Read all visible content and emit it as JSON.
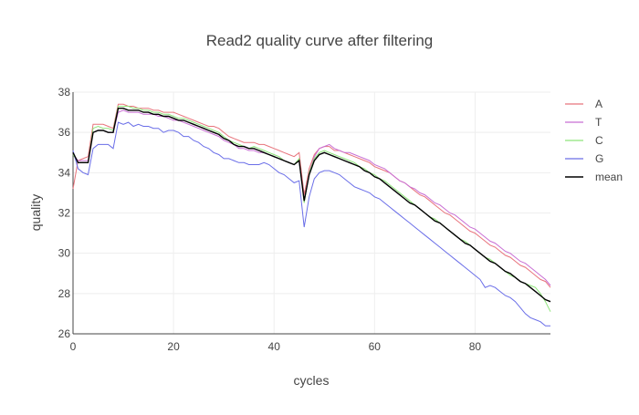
{
  "chart_data": {
    "type": "line",
    "title": "Read2 quality curve after filtering",
    "xlabel": "cycles",
    "ylabel": "quality",
    "xlim": [
      0,
      95
    ],
    "ylim": [
      26,
      38
    ],
    "xticks": [
      0,
      20,
      40,
      60,
      80
    ],
    "yticks": [
      26,
      28,
      30,
      32,
      34,
      36,
      38
    ],
    "grid": true,
    "legend_position": "right",
    "series": [
      {
        "name": "A",
        "color": "#e8747c",
        "x": [
          0,
          1,
          2,
          3,
          4,
          5,
          6,
          7,
          8,
          9,
          10,
          11,
          12,
          13,
          14,
          15,
          16,
          17,
          18,
          19,
          20,
          21,
          22,
          23,
          24,
          25,
          26,
          27,
          28,
          29,
          30,
          31,
          32,
          33,
          34,
          35,
          36,
          37,
          38,
          39,
          40,
          41,
          42,
          43,
          44,
          45,
          46,
          47,
          48,
          49,
          50,
          51,
          52,
          53,
          54,
          55,
          56,
          57,
          58,
          59,
          60,
          61,
          62,
          63,
          64,
          65,
          66,
          67,
          68,
          69,
          70,
          71,
          72,
          73,
          74,
          75,
          76,
          77,
          78,
          79,
          80,
          81,
          82,
          83,
          84,
          85,
          86,
          87,
          88,
          89,
          90,
          91,
          92,
          93,
          94,
          95
        ],
        "values": [
          33.2,
          34.6,
          34.7,
          34.8,
          36.4,
          36.4,
          36.4,
          36.3,
          36.2,
          37.4,
          37.4,
          37.3,
          37.3,
          37.2,
          37.2,
          37.2,
          37.1,
          37.1,
          37.0,
          37.0,
          37.0,
          36.9,
          36.8,
          36.7,
          36.6,
          36.5,
          36.4,
          36.3,
          36.3,
          36.2,
          36.0,
          35.8,
          35.7,
          35.6,
          35.5,
          35.5,
          35.5,
          35.4,
          35.4,
          35.3,
          35.2,
          35.1,
          35.0,
          34.9,
          34.8,
          35.0,
          32.9,
          34.2,
          34.9,
          35.2,
          35.3,
          35.3,
          35.1,
          35.1,
          35.0,
          34.9,
          34.8,
          34.7,
          34.6,
          34.5,
          34.3,
          34.2,
          34.1,
          34.0,
          33.8,
          33.6,
          33.5,
          33.3,
          33.1,
          32.9,
          32.8,
          32.6,
          32.4,
          32.2,
          32.0,
          31.9,
          31.7,
          31.5,
          31.3,
          31.1,
          31.0,
          30.8,
          30.6,
          30.4,
          30.3,
          30.1,
          29.9,
          29.8,
          29.6,
          29.4,
          29.3,
          29.1,
          28.9,
          28.7,
          28.6,
          28.3
        ]
      },
      {
        "name": "T",
        "color": "#c86ed4",
        "x": [
          0,
          1,
          2,
          3,
          4,
          5,
          6,
          7,
          8,
          9,
          10,
          11,
          12,
          13,
          14,
          15,
          16,
          17,
          18,
          19,
          20,
          21,
          22,
          23,
          24,
          25,
          26,
          27,
          28,
          29,
          30,
          31,
          32,
          33,
          34,
          35,
          36,
          37,
          38,
          39,
          40,
          41,
          42,
          43,
          44,
          45,
          46,
          47,
          48,
          49,
          50,
          51,
          52,
          53,
          54,
          55,
          56,
          57,
          58,
          59,
          60,
          61,
          62,
          63,
          64,
          65,
          66,
          67,
          68,
          69,
          70,
          71,
          72,
          73,
          74,
          75,
          76,
          77,
          78,
          79,
          80,
          81,
          82,
          83,
          84,
          85,
          86,
          87,
          88,
          89,
          90,
          91,
          92,
          93,
          94,
          95
        ],
        "values": [
          34.9,
          34.6,
          34.6,
          34.6,
          36.0,
          36.1,
          36.1,
          36.0,
          36.0,
          37.0,
          37.1,
          37.0,
          37.0,
          37.0,
          36.9,
          36.9,
          36.9,
          36.8,
          36.8,
          36.7,
          36.6,
          36.6,
          36.5,
          36.4,
          36.3,
          36.2,
          36.1,
          36.0,
          35.9,
          35.8,
          35.6,
          35.5,
          35.4,
          35.2,
          35.2,
          35.1,
          35.1,
          35.0,
          35.0,
          34.9,
          34.8,
          34.7,
          34.6,
          34.5,
          34.4,
          34.6,
          32.6,
          34.0,
          34.8,
          35.2,
          35.3,
          35.4,
          35.2,
          35.1,
          35.0,
          35.0,
          34.9,
          34.8,
          34.7,
          34.6,
          34.4,
          34.3,
          34.2,
          34.0,
          33.8,
          33.6,
          33.5,
          33.3,
          33.2,
          33.0,
          32.9,
          32.7,
          32.5,
          32.4,
          32.2,
          32.0,
          31.9,
          31.7,
          31.5,
          31.3,
          31.2,
          31.0,
          30.8,
          30.6,
          30.5,
          30.3,
          30.1,
          30.0,
          29.8,
          29.6,
          29.5,
          29.3,
          29.1,
          28.9,
          28.7,
          28.4
        ]
      },
      {
        "name": "C",
        "color": "#8ee47a",
        "x": [
          0,
          1,
          2,
          3,
          4,
          5,
          6,
          7,
          8,
          9,
          10,
          11,
          12,
          13,
          14,
          15,
          16,
          17,
          18,
          19,
          20,
          21,
          22,
          23,
          24,
          25,
          26,
          27,
          28,
          29,
          30,
          31,
          32,
          33,
          34,
          35,
          36,
          37,
          38,
          39,
          40,
          41,
          42,
          43,
          44,
          45,
          46,
          47,
          48,
          49,
          50,
          51,
          52,
          53,
          54,
          55,
          56,
          57,
          58,
          59,
          60,
          61,
          62,
          63,
          64,
          65,
          66,
          67,
          68,
          69,
          70,
          71,
          72,
          73,
          74,
          75,
          76,
          77,
          78,
          79,
          80,
          81,
          82,
          83,
          84,
          85,
          86,
          87,
          88,
          89,
          90,
          91,
          92,
          93,
          94,
          95
        ],
        "values": [
          34.9,
          34.5,
          34.5,
          34.5,
          36.2,
          36.3,
          36.2,
          36.2,
          36.1,
          37.3,
          37.3,
          37.3,
          37.2,
          37.2,
          37.1,
          37.1,
          37.0,
          37.0,
          36.9,
          36.9,
          36.8,
          36.7,
          36.7,
          36.6,
          36.5,
          36.4,
          36.3,
          36.2,
          36.1,
          36.0,
          35.8,
          35.6,
          35.5,
          35.4,
          35.3,
          35.2,
          35.3,
          35.2,
          35.1,
          35.0,
          34.9,
          34.8,
          34.6,
          34.5,
          34.4,
          34.7,
          32.5,
          34.0,
          34.7,
          35.0,
          35.1,
          35.0,
          34.9,
          34.8,
          34.7,
          34.6,
          34.5,
          34.3,
          34.2,
          34.0,
          33.9,
          33.7,
          33.6,
          33.4,
          33.2,
          33.0,
          32.8,
          32.6,
          32.4,
          32.2,
          32.0,
          31.8,
          31.7,
          31.5,
          31.3,
          31.1,
          30.9,
          30.7,
          30.6,
          30.4,
          30.2,
          30.0,
          29.8,
          29.7,
          29.5,
          29.3,
          29.1,
          28.9,
          28.8,
          28.6,
          28.5,
          28.4,
          28.3,
          28.0,
          27.6,
          27.1
        ]
      },
      {
        "name": "G",
        "color": "#6a6ee8",
        "x": [
          0,
          1,
          2,
          3,
          4,
          5,
          6,
          7,
          8,
          9,
          10,
          11,
          12,
          13,
          14,
          15,
          16,
          17,
          18,
          19,
          20,
          21,
          22,
          23,
          24,
          25,
          26,
          27,
          28,
          29,
          30,
          31,
          32,
          33,
          34,
          35,
          36,
          37,
          38,
          39,
          40,
          41,
          42,
          43,
          44,
          45,
          46,
          47,
          48,
          49,
          50,
          51,
          52,
          53,
          54,
          55,
          56,
          57,
          58,
          59,
          60,
          61,
          62,
          63,
          64,
          65,
          66,
          67,
          68,
          69,
          70,
          71,
          72,
          73,
          74,
          75,
          76,
          77,
          78,
          79,
          80,
          81,
          82,
          83,
          84,
          85,
          86,
          87,
          88,
          89,
          90,
          91,
          92,
          93,
          94,
          95
        ],
        "values": [
          35.1,
          34.2,
          34.0,
          33.9,
          35.2,
          35.4,
          35.4,
          35.4,
          35.2,
          36.5,
          36.4,
          36.5,
          36.3,
          36.4,
          36.3,
          36.3,
          36.2,
          36.2,
          36.0,
          36.1,
          36.1,
          36.0,
          35.8,
          35.8,
          35.6,
          35.5,
          35.3,
          35.2,
          35.0,
          34.9,
          34.7,
          34.7,
          34.6,
          34.5,
          34.5,
          34.4,
          34.4,
          34.4,
          34.5,
          34.4,
          34.2,
          34.0,
          33.9,
          33.7,
          33.5,
          33.6,
          31.3,
          32.8,
          33.7,
          34.0,
          34.1,
          34.1,
          34.0,
          33.9,
          33.7,
          33.5,
          33.3,
          33.2,
          33.1,
          33.0,
          32.8,
          32.7,
          32.5,
          32.3,
          32.1,
          31.9,
          31.7,
          31.5,
          31.3,
          31.1,
          30.9,
          30.7,
          30.5,
          30.3,
          30.1,
          29.9,
          29.7,
          29.5,
          29.3,
          29.1,
          28.9,
          28.7,
          28.3,
          28.4,
          28.3,
          28.1,
          27.9,
          27.8,
          27.6,
          27.3,
          27.0,
          26.8,
          26.7,
          26.6,
          26.4,
          26.4
        ]
      },
      {
        "name": "mean",
        "color": "#000000",
        "x": [
          0,
          1,
          2,
          3,
          4,
          5,
          6,
          7,
          8,
          9,
          10,
          11,
          12,
          13,
          14,
          15,
          16,
          17,
          18,
          19,
          20,
          21,
          22,
          23,
          24,
          25,
          26,
          27,
          28,
          29,
          30,
          31,
          32,
          33,
          34,
          35,
          36,
          37,
          38,
          39,
          40,
          41,
          42,
          43,
          44,
          45,
          46,
          47,
          48,
          49,
          50,
          51,
          52,
          53,
          54,
          55,
          56,
          57,
          58,
          59,
          60,
          61,
          62,
          63,
          64,
          65,
          66,
          67,
          68,
          69,
          70,
          71,
          72,
          73,
          74,
          75,
          76,
          77,
          78,
          79,
          80,
          81,
          82,
          83,
          84,
          85,
          86,
          87,
          88,
          89,
          90,
          91,
          92,
          93,
          94,
          95
        ],
        "values": [
          35.0,
          34.5,
          34.5,
          34.5,
          36.0,
          36.1,
          36.1,
          36.0,
          36.0,
          37.2,
          37.2,
          37.1,
          37.1,
          37.1,
          37.0,
          37.0,
          36.9,
          36.9,
          36.8,
          36.8,
          36.7,
          36.6,
          36.6,
          36.5,
          36.4,
          36.3,
          36.2,
          36.1,
          36.0,
          35.9,
          35.7,
          35.6,
          35.4,
          35.3,
          35.3,
          35.2,
          35.2,
          35.1,
          35.0,
          34.9,
          34.8,
          34.7,
          34.6,
          34.5,
          34.4,
          34.6,
          32.6,
          33.9,
          34.6,
          34.9,
          35.0,
          34.9,
          34.8,
          34.7,
          34.6,
          34.5,
          34.4,
          34.3,
          34.1,
          34.0,
          33.8,
          33.7,
          33.5,
          33.3,
          33.1,
          32.9,
          32.7,
          32.5,
          32.4,
          32.2,
          32.0,
          31.8,
          31.6,
          31.5,
          31.3,
          31.1,
          30.9,
          30.7,
          30.5,
          30.4,
          30.2,
          30.0,
          29.8,
          29.6,
          29.5,
          29.3,
          29.1,
          29.0,
          28.8,
          28.6,
          28.5,
          28.3,
          28.1,
          27.9,
          27.7,
          27.6
        ]
      }
    ]
  }
}
